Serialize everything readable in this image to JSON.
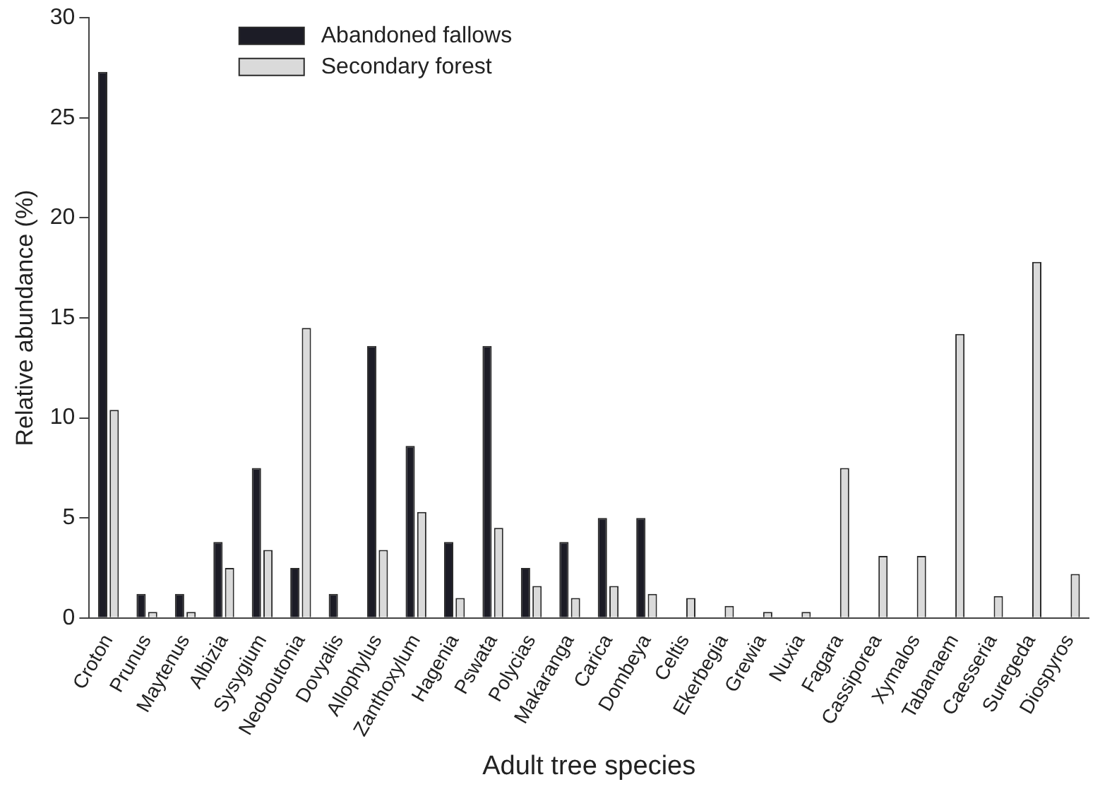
{
  "chart_data": {
    "type": "bar",
    "xlabel": "Adult tree species",
    "ylabel": "Relative abundance (%)",
    "categories": [
      "Croton",
      "Prunus",
      "Maytenus",
      "Albizia",
      "Sysygium",
      "Neoboutonia",
      "Dovyalis",
      "Allophylus",
      "Zanthoxylum",
      "Hagenia",
      "Pswata",
      "Polycias",
      "Makaranga",
      "Carica",
      "Dombeya",
      "Celtis",
      "Ekerbegia",
      "Grewia",
      "Nuxia",
      "Fagara",
      "Cassiporea",
      "Xymalos",
      "Tabanaem",
      "Caesseria",
      "Suregeda",
      "Diospyros"
    ],
    "series": [
      {
        "name": "Abandoned fallows",
        "color": "#1c1c26",
        "values": [
          27.3,
          1.2,
          1.2,
          3.8,
          7.5,
          2.5,
          1.2,
          13.6,
          8.6,
          3.8,
          13.6,
          2.5,
          3.8,
          5.0,
          5.0,
          null,
          null,
          null,
          null,
          null,
          null,
          null,
          null,
          null,
          null,
          null
        ]
      },
      {
        "name": "Secondary forest",
        "color": "#dadada",
        "values": [
          10.4,
          0.3,
          0.3,
          2.5,
          3.4,
          14.5,
          null,
          3.4,
          5.3,
          1.0,
          4.5,
          1.6,
          1.0,
          1.6,
          1.2,
          1.0,
          0.6,
          0.3,
          0.3,
          7.5,
          3.1,
          3.1,
          14.2,
          1.1,
          17.8,
          2.2
        ]
      }
    ],
    "ylim": [
      0,
      30
    ],
    "yticks": [
      0,
      5,
      10,
      15,
      20,
      25,
      30
    ],
    "grid": false,
    "legend": "top left"
  }
}
